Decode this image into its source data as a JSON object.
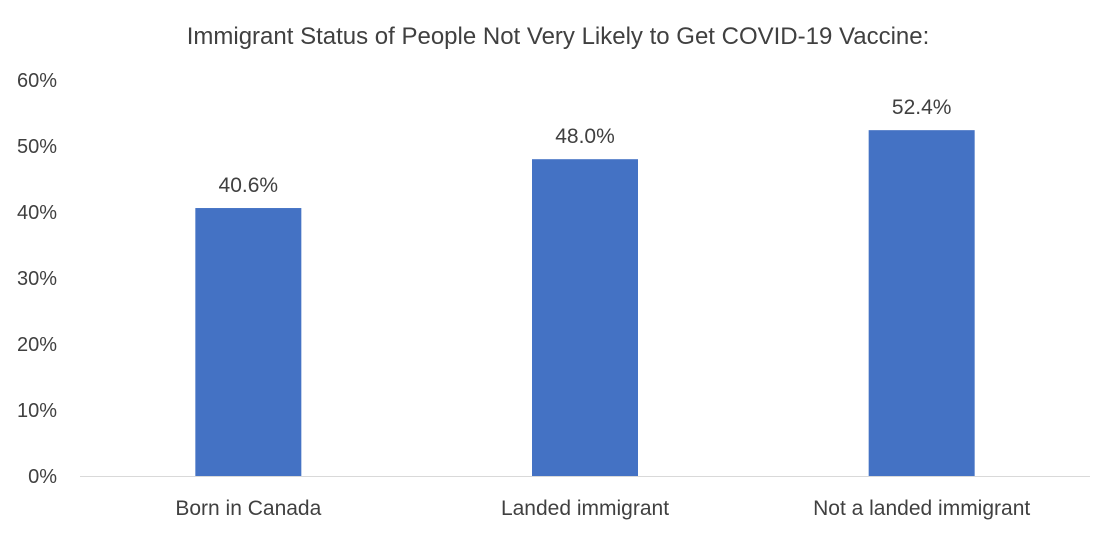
{
  "chart_data": {
    "type": "bar",
    "title": "Immigrant Status of People Not Very Likely to Get COVID-19 Vaccine:",
    "categories": [
      "Born in Canada",
      "Landed immigrant",
      "Not a landed immigrant"
    ],
    "values": [
      40.6,
      48.0,
      52.4
    ],
    "data_labels": [
      "40.6%",
      "48.0%",
      "52.4%"
    ],
    "y_ticks": [
      0,
      10,
      20,
      30,
      40,
      50,
      60
    ],
    "y_tick_labels": [
      "0%",
      "10%",
      "20%",
      "30%",
      "40%",
      "50%",
      "60%"
    ],
    "ylim": [
      0,
      60
    ],
    "xlabel": "",
    "ylabel": "",
    "grid": false,
    "legend": "none",
    "colors": {
      "bar": "#4472C4",
      "text": "#404040",
      "axis": "#D9D9D9"
    }
  }
}
